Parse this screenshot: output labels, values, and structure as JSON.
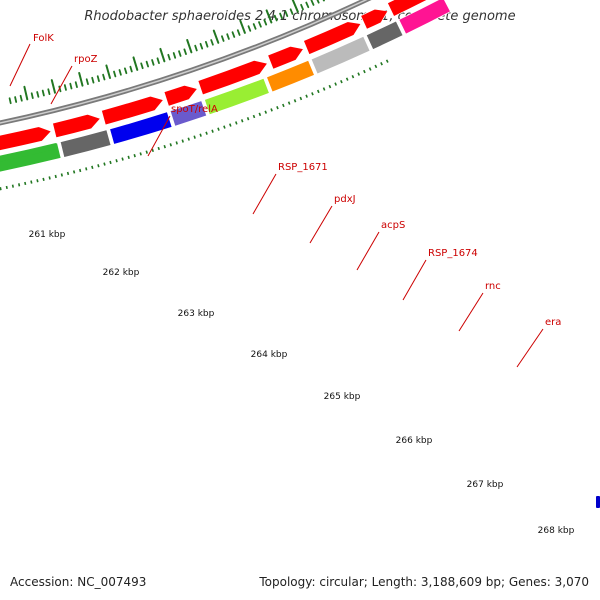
{
  "title": "Rhodobacter sphaeroides 2.4.1 chromosome 1, complete genome",
  "footer": {
    "accession": "Accession: NC_007493",
    "topology": "Topology: circular; Length: 3,188,609 bp; Genes: 3,070"
  },
  "colors": {
    "forward_strand": [
      "#0000ee",
      "#ff8c00",
      "#33bb33",
      "#666666",
      "#0000ee",
      "#6a5acd",
      "#99ee33",
      "#ff8c00",
      "#bbbbbb",
      "#666666",
      "#ff1493"
    ],
    "reverse_strand": "#ff0000",
    "label_text": "#cc0000",
    "ticks": "#227722",
    "backbone": "#888888"
  },
  "features": [
    {
      "name": "FolK"
    },
    {
      "name": "rpoZ"
    },
    {
      "name": "spoT/relA"
    },
    {
      "name": "RSP_1671"
    },
    {
      "name": "pdxJ"
    },
    {
      "name": "acpS"
    },
    {
      "name": "RSP_1674"
    },
    {
      "name": "rnc"
    },
    {
      "name": "era"
    }
  ],
  "scale": {
    "labels": [
      "261 kbp",
      "262 kbp",
      "263 kbp",
      "264 kbp",
      "265 kbp",
      "266 kbp",
      "267 kbp",
      "268 kbp"
    ]
  }
}
